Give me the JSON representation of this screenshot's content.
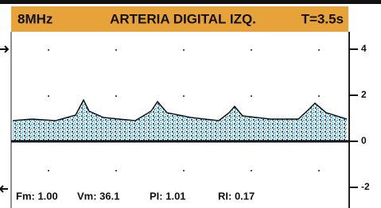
{
  "header": {
    "frequency": "8MHz",
    "title": "ARTERIA DIGITAL IZQ.",
    "time": "T=3.5s"
  },
  "axis": {
    "ticks": [
      4,
      2,
      0,
      -2
    ]
  },
  "measurements": [
    "Fm: 1.00",
    "Vm: 36.1",
    "PI: 1.01",
    "RI: 0.17"
  ]
}
